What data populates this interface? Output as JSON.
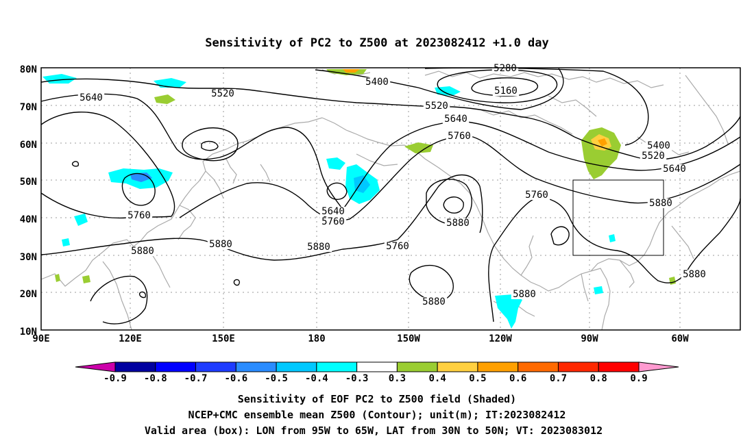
{
  "title": "Sensitivity of PC2 to Z500 at 2023082412 +1.0 day",
  "lat_labels": [
    "80N",
    "70N",
    "60N",
    "50N",
    "40N",
    "30N",
    "20N",
    "10N"
  ],
  "lon_labels": [
    "90E",
    "120E",
    "150E",
    "180",
    "150W",
    "120W",
    "90W",
    "60W"
  ],
  "contour_labels": [
    {
      "text": "5280"
    },
    {
      "text": "5160"
    },
    {
      "text": "5400"
    },
    {
      "text": "5520"
    },
    {
      "text": "5640"
    },
    {
      "text": "5520"
    },
    {
      "text": "5640"
    },
    {
      "text": "5760"
    },
    {
      "text": "5400"
    },
    {
      "text": "5520"
    },
    {
      "text": "5640"
    },
    {
      "text": "5760"
    },
    {
      "text": "5880"
    },
    {
      "text": "5640"
    },
    {
      "text": "5760"
    },
    {
      "text": "5760"
    },
    {
      "text": "5880"
    },
    {
      "text": "5880"
    },
    {
      "text": "5880"
    },
    {
      "text": "5760"
    },
    {
      "text": "5880"
    },
    {
      "text": "5880"
    },
    {
      "text": "5880"
    },
    {
      "text": "5880"
    }
  ],
  "colorbar": {
    "labels": [
      "-0.9",
      "-0.8",
      "-0.7",
      "-0.6",
      "-0.5",
      "-0.4",
      "-0.3",
      "0.3",
      "0.4",
      "0.5",
      "0.6",
      "0.7",
      "0.8",
      "0.9"
    ],
    "colors": [
      "#0000a0",
      "#0000ff",
      "#1e3cff",
      "#2a8cff",
      "#00c8ff",
      "#00ffff",
      "#ffffff",
      "#9acd32",
      "#ffd040",
      "#ffa000",
      "#ff6a00",
      "#ff2800",
      "#ff0000"
    ],
    "low_color": "#cc00aa",
    "high_color": "#ff9ad0"
  },
  "footer": {
    "line1": "Sensitivity of EOF PC2 to Z500 field (Shaded)",
    "line2": "NCEP+CMC ensemble mean Z500 (Contour); unit(m); IT:2023082412",
    "line3": "Valid area (box): LON from 95W to 65W, LAT from 30N to 50N; VT: 2023083012"
  }
}
